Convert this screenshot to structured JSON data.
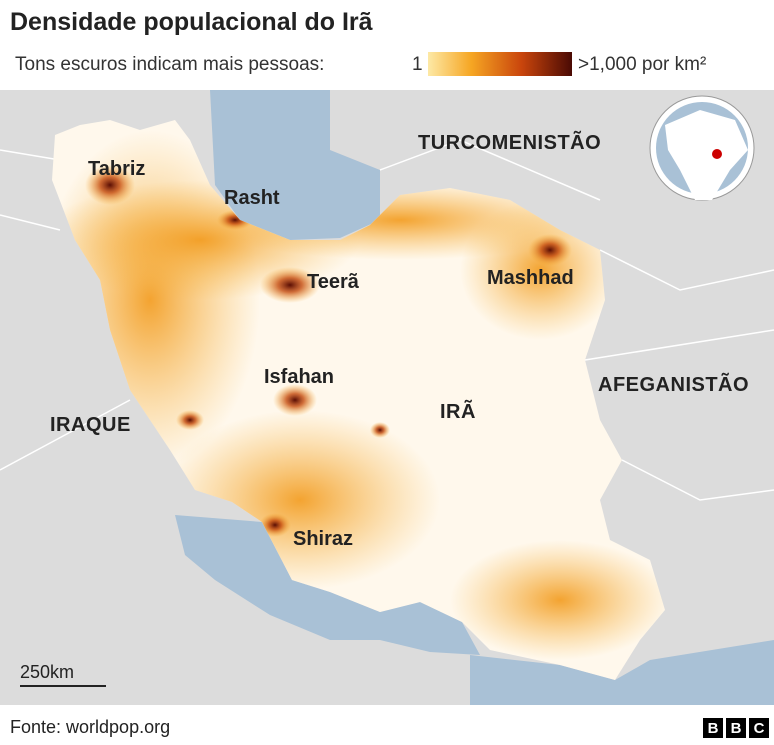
{
  "header": {
    "title": "Densidade populacional do Irã",
    "legend_label": "Tons escuros indicam mais pessoas:",
    "scale_min": "1",
    "scale_max": ">1,000 por km²"
  },
  "map": {
    "cities": [
      "Tabriz",
      "Rasht",
      "Teerã",
      "Mashhad",
      "Isfahan",
      "Shiraz"
    ],
    "countries": [
      "TURCOMENISTÃO",
      "AFEGANISTÃO",
      "IRAQUE",
      "IRÃ"
    ],
    "scale_bar": "250km"
  },
  "footer": {
    "source": "Fonte: worldpop.org",
    "logo": [
      "B",
      "B",
      "C"
    ]
  }
}
